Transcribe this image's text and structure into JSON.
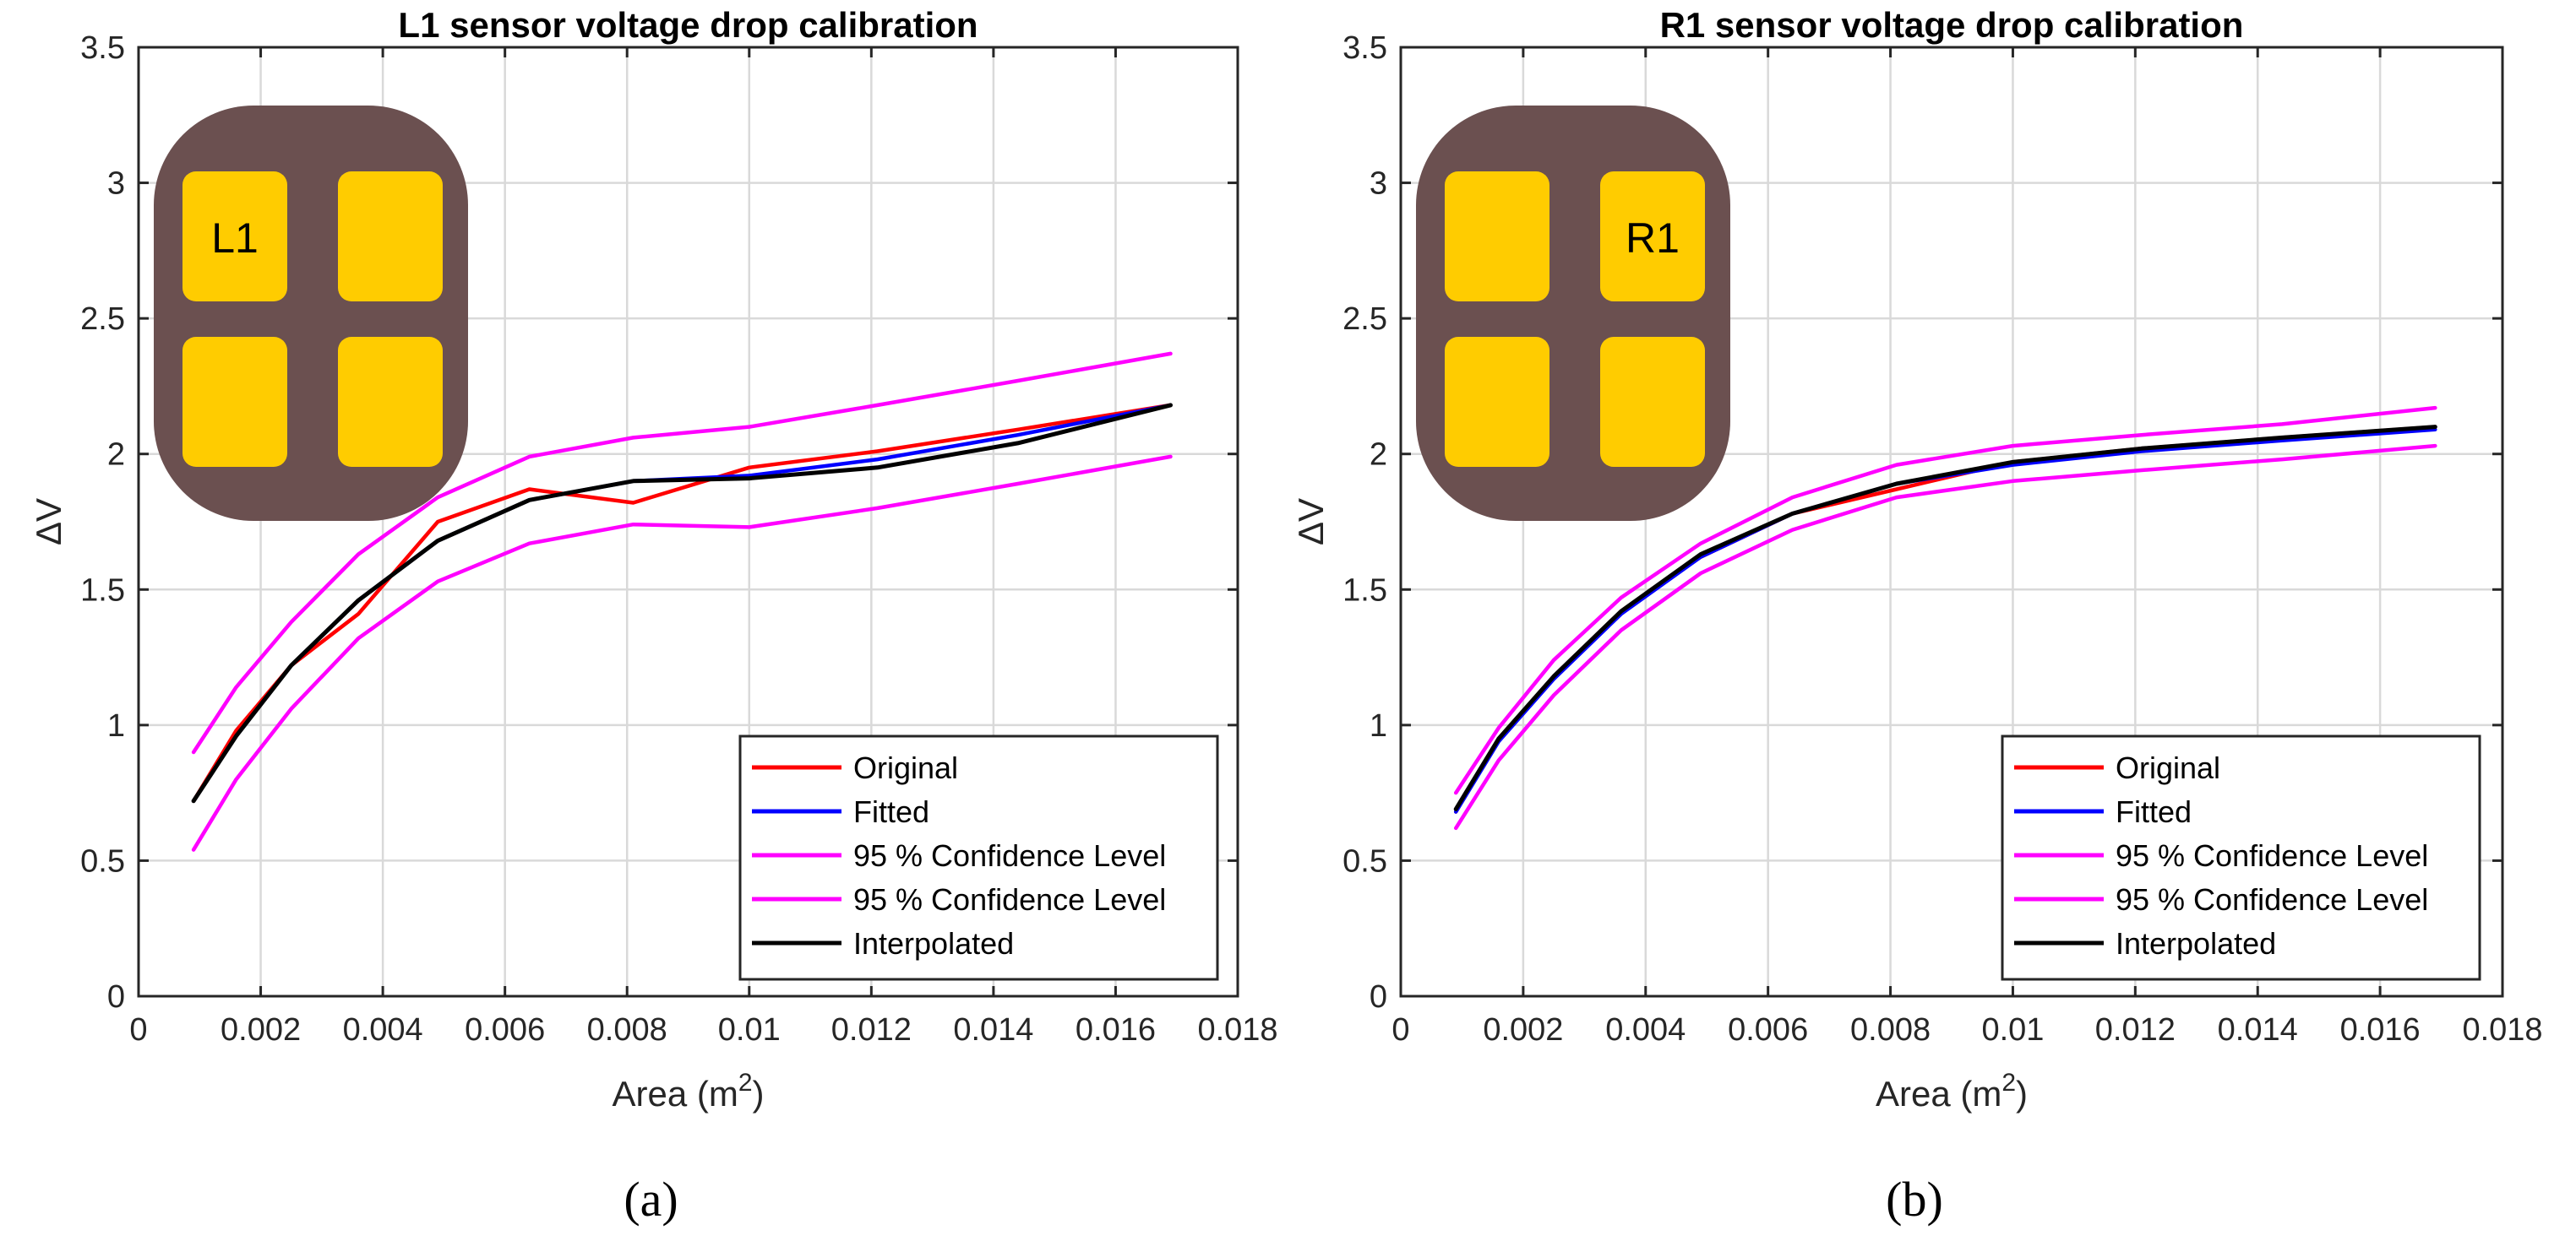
{
  "figure": {
    "colors": {
      "original": "#ff0000",
      "fitted": "#0000ff",
      "confidence": "#ff00ff",
      "interpolated": "#000000",
      "sensor_body": "#6b5050",
      "sensor_pad": "#ffcc00",
      "grid": "#d9d9d9"
    }
  },
  "chart_data": [
    {
      "type": "line",
      "panel_label": "(a)",
      "title": "L1 sensor voltage drop calibration",
      "xlabel": "Area (m",
      "xlabel_sup": "2",
      "xlabel_close": ")",
      "ylabel": "ΔV",
      "xlim": [
        0,
        0.018
      ],
      "ylim": [
        0,
        3.5
      ],
      "xticks": [
        0,
        0.002,
        0.004,
        0.006,
        0.008,
        0.01,
        0.012,
        0.014,
        0.016,
        0.018
      ],
      "xtick_labels": [
        "0",
        "0.002",
        "0.004",
        "0.006",
        "0.008",
        "0.01",
        "0.012",
        "0.014",
        "0.016",
        "0.018"
      ],
      "yticks": [
        0,
        0.5,
        1,
        1.5,
        2,
        2.5,
        3,
        3.5
      ],
      "ytick_labels": [
        "0",
        "0.5",
        "1",
        "1.5",
        "2",
        "2.5",
        "3",
        "3.5"
      ],
      "grid": true,
      "legend_position": "bottom-right",
      "sensor_inset": {
        "labels": [
          "L1",
          "",
          "",
          ""
        ],
        "position": "top-left"
      },
      "series": [
        {
          "name": "Original",
          "color_key": "original",
          "x": [
            0.0009,
            0.0016,
            0.0025,
            0.0036,
            0.0049,
            0.0064,
            0.0081,
            0.01,
            0.0121,
            0.0144,
            0.0169
          ],
          "y": [
            0.72,
            0.98,
            1.22,
            1.41,
            1.75,
            1.87,
            1.82,
            1.95,
            2.01,
            2.09,
            2.18
          ]
        },
        {
          "name": "Fitted",
          "color_key": "fitted",
          "x": [
            0.0009,
            0.0016,
            0.0025,
            0.0036,
            0.0049,
            0.0064,
            0.0081,
            0.01,
            0.0121,
            0.0144,
            0.0169
          ],
          "y": [
            0.72,
            0.96,
            1.22,
            1.46,
            1.68,
            1.83,
            1.9,
            1.92,
            1.98,
            2.07,
            2.18
          ]
        },
        {
          "name": "95 % Confidence Level",
          "color_key": "confidence",
          "x": [
            0.0009,
            0.0016,
            0.0025,
            0.0036,
            0.0049,
            0.0064,
            0.0081,
            0.01,
            0.0121,
            0.0144,
            0.0169
          ],
          "y": [
            0.9,
            1.14,
            1.38,
            1.63,
            1.84,
            1.99,
            2.06,
            2.1,
            2.18,
            2.27,
            2.37
          ]
        },
        {
          "name": "95 % Confidence Level",
          "color_key": "confidence",
          "x": [
            0.0009,
            0.0016,
            0.0025,
            0.0036,
            0.0049,
            0.0064,
            0.0081,
            0.01,
            0.0121,
            0.0144,
            0.0169
          ],
          "y": [
            0.54,
            0.8,
            1.06,
            1.32,
            1.53,
            1.67,
            1.74,
            1.73,
            1.8,
            1.89,
            1.99
          ]
        },
        {
          "name": "Interpolated",
          "color_key": "interpolated",
          "x": [
            0.0009,
            0.0016,
            0.0025,
            0.0036,
            0.0049,
            0.0064,
            0.0081,
            0.01,
            0.0121,
            0.0144,
            0.0169
          ],
          "y": [
            0.72,
            0.96,
            1.22,
            1.46,
            1.68,
            1.83,
            1.9,
            1.91,
            1.95,
            2.04,
            2.18
          ]
        }
      ]
    },
    {
      "type": "line",
      "panel_label": "(b)",
      "title": "R1 sensor voltage drop calibration",
      "xlabel": "Area (m",
      "xlabel_sup": "2",
      "xlabel_close": ")",
      "ylabel": "ΔV",
      "xlim": [
        0,
        0.018
      ],
      "ylim": [
        0,
        3.5
      ],
      "xticks": [
        0,
        0.002,
        0.004,
        0.006,
        0.008,
        0.01,
        0.012,
        0.014,
        0.016,
        0.018
      ],
      "xtick_labels": [
        "0",
        "0.002",
        "0.004",
        "0.006",
        "0.008",
        "0.01",
        "0.012",
        "0.014",
        "0.016",
        "0.018"
      ],
      "yticks": [
        0,
        0.5,
        1,
        1.5,
        2,
        2.5,
        3,
        3.5
      ],
      "ytick_labels": [
        "0",
        "0.5",
        "1",
        "1.5",
        "2",
        "2.5",
        "3",
        "3.5"
      ],
      "grid": true,
      "legend_position": "bottom-right",
      "sensor_inset": {
        "labels": [
          "",
          "R1",
          "",
          ""
        ],
        "position": "top-left"
      },
      "series": [
        {
          "name": "Original",
          "color_key": "original",
          "x": [
            0.0009,
            0.0016,
            0.0025,
            0.0036,
            0.0049,
            0.0064,
            0.0081,
            0.01,
            0.0121,
            0.0144,
            0.0169
          ],
          "y": [
            0.68,
            0.95,
            1.18,
            1.42,
            1.62,
            1.78,
            1.87,
            1.97,
            2.02,
            2.06,
            2.1
          ]
        },
        {
          "name": "Fitted",
          "color_key": "fitted",
          "x": [
            0.0009,
            0.0016,
            0.0025,
            0.0036,
            0.0049,
            0.0064,
            0.0081,
            0.01,
            0.0121,
            0.0144,
            0.0169
          ],
          "y": [
            0.68,
            0.94,
            1.17,
            1.41,
            1.62,
            1.78,
            1.89,
            1.96,
            2.01,
            2.05,
            2.09
          ]
        },
        {
          "name": "95 % Confidence Level",
          "color_key": "confidence",
          "x": [
            0.0009,
            0.0016,
            0.0025,
            0.0036,
            0.0049,
            0.0064,
            0.0081,
            0.01,
            0.0121,
            0.0144,
            0.0169
          ],
          "y": [
            0.75,
            0.99,
            1.24,
            1.47,
            1.67,
            1.84,
            1.96,
            2.03,
            2.07,
            2.11,
            2.17
          ]
        },
        {
          "name": "95 % Confidence Level",
          "color_key": "confidence",
          "x": [
            0.0009,
            0.0016,
            0.0025,
            0.0036,
            0.0049,
            0.0064,
            0.0081,
            0.01,
            0.0121,
            0.0144,
            0.0169
          ],
          "y": [
            0.62,
            0.87,
            1.11,
            1.35,
            1.56,
            1.72,
            1.84,
            1.9,
            1.94,
            1.98,
            2.03
          ]
        },
        {
          "name": "Interpolated",
          "color_key": "interpolated",
          "x": [
            0.0009,
            0.0016,
            0.0025,
            0.0036,
            0.0049,
            0.0064,
            0.0081,
            0.01,
            0.0121,
            0.0144,
            0.0169
          ],
          "y": [
            0.69,
            0.95,
            1.18,
            1.42,
            1.63,
            1.78,
            1.89,
            1.97,
            2.02,
            2.06,
            2.1
          ]
        }
      ]
    }
  ]
}
